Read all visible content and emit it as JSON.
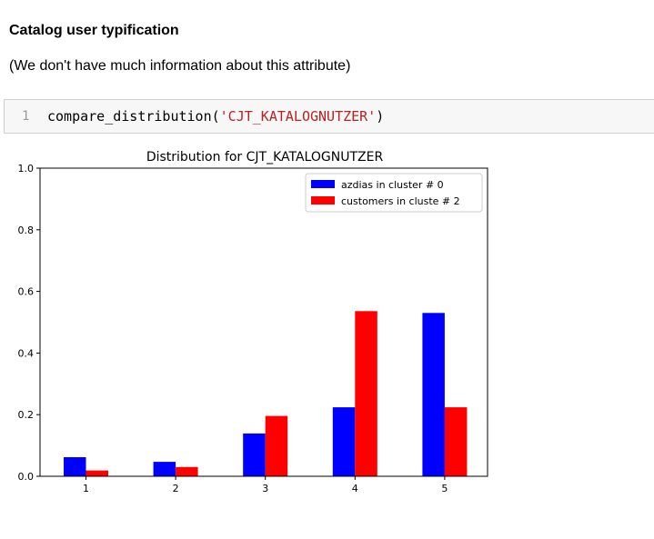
{
  "markdown": {
    "heading": "Catalog user typification",
    "text": "(We don't have much information about this attribute)"
  },
  "code_cell": {
    "line_number": "1",
    "code_prefix": "compare_distribution(",
    "code_string": "'CJT_KATALOGNUTZER'",
    "code_suffix": ")"
  },
  "chart_data": {
    "type": "bar",
    "title": "Distribution for CJT_KATALOGNUTZER",
    "xlabel": "",
    "ylabel": "",
    "categories": [
      "1",
      "2",
      "3",
      "4",
      "5"
    ],
    "series": [
      {
        "name": "azdias in cluster # 0",
        "color": "#0000ff",
        "values": [
          0.062,
          0.047,
          0.139,
          0.224,
          0.53
        ]
      },
      {
        "name": "customers in cluste # 2",
        "color": "#ff0000",
        "values": [
          0.019,
          0.03,
          0.196,
          0.536,
          0.224
        ]
      }
    ],
    "ylim": [
      0.0,
      1.0
    ],
    "yticks": [
      "0.0",
      "0.2",
      "0.4",
      "0.6",
      "0.8",
      "1.0"
    ],
    "grid": false,
    "legend_position": "top-right"
  }
}
